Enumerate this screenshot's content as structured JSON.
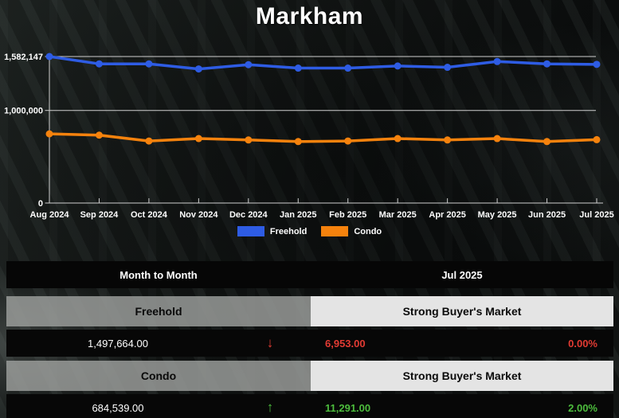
{
  "title": "Markham",
  "colors": {
    "freehold": "#2e5ce4",
    "condo": "#f5820d",
    "negative": "#e23b33",
    "positive": "#4dbd3d",
    "axis": "#cfcfcf",
    "tick_text": "#ffffff"
  },
  "chart_data": {
    "type": "line",
    "x": [
      "Aug 2024",
      "Sep 2024",
      "Oct 2024",
      "Nov 2024",
      "Dec 2024",
      "Jan 2025",
      "Feb 2025",
      "Mar 2025",
      "Apr 2025",
      "May 2025",
      "Jun 2025",
      "Jul 2025"
    ],
    "series": [
      {
        "name": "Freehold",
        "color": "#2e5ce4",
        "values": [
          1582147,
          1503000,
          1503000,
          1448000,
          1494000,
          1457000,
          1457000,
          1480000,
          1466000,
          1528000,
          1503000,
          1497664
        ]
      },
      {
        "name": "Condo",
        "color": "#f5820d",
        "values": [
          747000,
          733000,
          670000,
          696000,
          681000,
          664000,
          670000,
          696000,
          681000,
          696000,
          664000,
          684539
        ]
      }
    ],
    "y_ticks": [
      {
        "value": 1582147,
        "label": "1,582,147"
      },
      {
        "value": 1000000,
        "label": "1,000,000"
      },
      {
        "value": 0,
        "label": "0"
      }
    ],
    "ylim": [
      0,
      1582147
    ],
    "grid": "horizontal gridlines at labeled y-ticks",
    "legend_position": "bottom"
  },
  "legend": {
    "items": [
      {
        "label": "Freehold",
        "color": "#2e5ce4"
      },
      {
        "label": "Condo",
        "color": "#f5820d"
      }
    ]
  },
  "table": {
    "header": {
      "left": "Month to Month",
      "right": "Jul 2025"
    },
    "rows": [
      {
        "label": "Freehold",
        "market": "Strong Buyer's Market",
        "value": "1,497,664.00",
        "arrow_glyph": "↓",
        "direction": "down",
        "change": "6,953.00",
        "percent": "0.00%"
      },
      {
        "label": "Condo",
        "market": "Strong Buyer's Market",
        "value": "684,539.00",
        "arrow_glyph": "↑",
        "direction": "up",
        "change": "11,291.00",
        "percent": "2.00%"
      }
    ]
  }
}
